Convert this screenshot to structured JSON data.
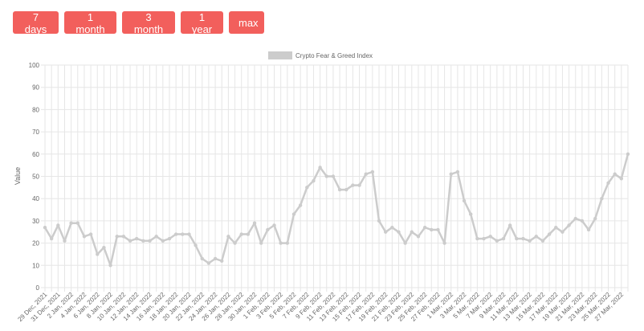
{
  "range_buttons": [
    "7 days",
    "1 month",
    "3 month",
    "1 year",
    "max"
  ],
  "chart_data": {
    "type": "line",
    "ylabel": "Value",
    "ylim": [
      0,
      100
    ],
    "y_ticks": [
      0,
      10,
      20,
      30,
      40,
      50,
      60,
      70,
      80,
      90,
      100
    ],
    "grid": true,
    "legend": "top-center",
    "colors": {
      "line": "#cccccc",
      "legend_box": "#cccccc",
      "grid": "#e6e6e6",
      "buttons": "#f25f5c"
    },
    "x_tick_labels": [
      "29 Dec, 2021",
      "31 Dec, 2021",
      "2 Jan, 2022",
      "4 Jan, 2022",
      "6 Jan, 2022",
      "8 Jan, 2022",
      "10 Jan, 2022",
      "12 Jan, 2022",
      "14 Jan, 2022",
      "16 Jan, 2022",
      "18 Jan, 2022",
      "20 Jan, 2022",
      "22 Jan, 2022",
      "24 Jan, 2022",
      "26 Jan, 2022",
      "28 Jan, 2022",
      "30 Jan, 2022",
      "1 Feb, 2022",
      "3 Feb, 2022",
      "5 Feb, 2022",
      "7 Feb, 2022",
      "9 Feb, 2022",
      "11 Feb, 2022",
      "13 Feb, 2022",
      "15 Feb, 2022",
      "17 Feb, 2022",
      "19 Feb, 2022",
      "21 Feb, 2022",
      "23 Feb, 2022",
      "25 Feb, 2022",
      "27 Feb, 2022",
      "1 Mar, 2022",
      "3 Mar, 2022",
      "5 Mar, 2022",
      "7 Mar, 2022",
      "9 Mar, 2022",
      "11 Mar, 2022",
      "13 Mar, 2022",
      "15 Mar, 2022",
      "17 Mar, 2022",
      "19 Mar, 2022",
      "21 Mar, 2022",
      "23 Mar, 2022",
      "25 Mar, 2022",
      "27 Mar, 2022"
    ],
    "series": [
      {
        "name": "Crypto Fear & Greed Index",
        "values": [
          27,
          22,
          28,
          21,
          29,
          29,
          23,
          24,
          15,
          18,
          10,
          23,
          23,
          21,
          22,
          21,
          21,
          23,
          21,
          22,
          24,
          24,
          24,
          19,
          13,
          11,
          13,
          12,
          23,
          20,
          24,
          24,
          29,
          20,
          26,
          28,
          20,
          20,
          33,
          37,
          45,
          48,
          54,
          50,
          50,
          44,
          44,
          46,
          46,
          51,
          52,
          30,
          25,
          27,
          25,
          20,
          25,
          23,
          27,
          26,
          26,
          20,
          51,
          52,
          39,
          33,
          22,
          22,
          23,
          21,
          22,
          28,
          22,
          22,
          21,
          23,
          21,
          24,
          27,
          25,
          28,
          31,
          30,
          26,
          31,
          40,
          47,
          51,
          49,
          60
        ]
      }
    ]
  }
}
